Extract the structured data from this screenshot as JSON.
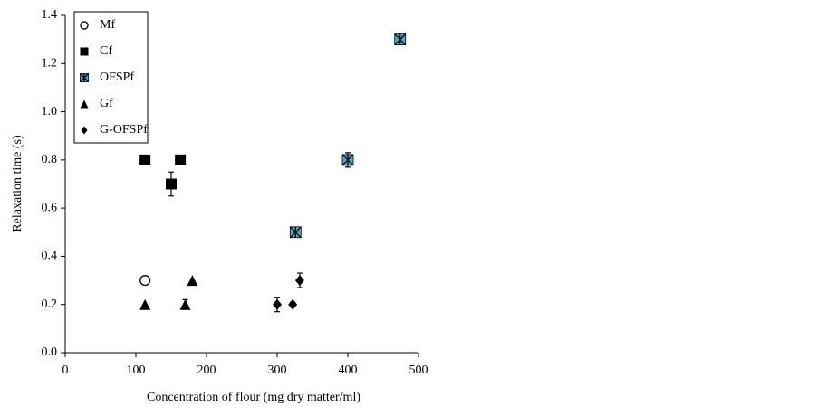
{
  "chart_data": {
    "type": "scatter",
    "xlabel": "Concentration of  flour (mg dry matter/ml)",
    "ylabel": "Relaxation time (s)",
    "xlim": [
      0,
      500
    ],
    "xticks": [
      0,
      100,
      200,
      300,
      400,
      500
    ],
    "ylim": [
      0,
      1.4
    ],
    "yticks": [
      {
        "value": 0,
        "label": "0.0"
      },
      0.2,
      0.4,
      0.6,
      0.8,
      {
        "value": 1,
        "label": "1.0"
      },
      1.2,
      1.4
    ],
    "legend": "top-left",
    "series": [
      {
        "name": "Mf",
        "marker": "circle-open",
        "color": "#000000",
        "x": [
          113
        ],
        "values": [
          0.3
        ],
        "errors": [
          null
        ]
      },
      {
        "name": "Cf",
        "marker": "square",
        "color": "#000000",
        "x": [
          113,
          150,
          163
        ],
        "values": [
          0.8,
          0.7,
          0.8
        ],
        "errors": [
          null,
          0.05,
          null
        ]
      },
      {
        "name": "OFSPf",
        "marker": "x-square",
        "color": "#4bacc6",
        "x": [
          326,
          400,
          474
        ],
        "values": [
          0.5,
          0.8,
          1.3
        ],
        "errors": [
          null,
          0.03,
          null
        ]
      },
      {
        "name": "Gf",
        "marker": "triangle",
        "color": "#000000",
        "x": [
          113,
          170,
          180
        ],
        "values": [
          0.2,
          0.2,
          0.3
        ],
        "errors": [
          null,
          0.02,
          null
        ]
      },
      {
        "name": "G-OFSPf",
        "marker": "diamond",
        "color": "#000000",
        "x": [
          300,
          322,
          332
        ],
        "values": [
          0.2,
          0.2,
          0.3
        ],
        "errors": [
          0.03,
          0.01,
          0.03
        ]
      }
    ]
  }
}
